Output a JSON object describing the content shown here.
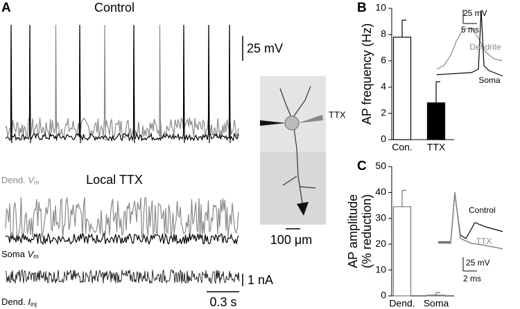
{
  "panel_a": {
    "label": "A",
    "control": "Control",
    "local_ttx": "Local TTX",
    "dend_v": {
      "prefix": "Dend.",
      "var": "V",
      "sub": "m"
    },
    "soma_v": {
      "prefix": "Soma",
      "var": "V",
      "sub": "m"
    },
    "dend_i": {
      "prefix": "Dend.",
      "var": "I",
      "sub": "inj"
    },
    "scale_mv": "25 mV",
    "scale_na": "1 nA",
    "scale_s": "0.3 s",
    "ttx": "TTX",
    "scale_um": "100 μm"
  },
  "chart_data": [
    {
      "type": "bar",
      "label": "B",
      "ylabel": [
        "AP frequency (Hz)"
      ],
      "categories": [
        "Con.",
        "TTX"
      ],
      "values": [
        7.8,
        2.8
      ],
      "errors": [
        1.3,
        1.6
      ],
      "colors": [
        "#ffffff",
        "#000000"
      ],
      "edge": "#000000",
      "ylim": [
        0,
        10
      ],
      "yticks": [
        0,
        2,
        4,
        6,
        8,
        10
      ],
      "annotations": [
        "25 mV",
        "5 ms",
        "Dendrite",
        "Soma"
      ]
    },
    {
      "type": "bar",
      "label": "C",
      "ylabel": [
        "AP amplitude",
        "(% reduction)"
      ],
      "categories": [
        "Dend.",
        "Soma"
      ],
      "values": [
        34.5,
        0.3
      ],
      "errors": [
        6.3,
        1.0
      ],
      "colors": [
        "#ffffff",
        "#ffffff"
      ],
      "edge": "#777777",
      "ylim": [
        0,
        50
      ],
      "yticks": [
        0,
        10,
        20,
        30,
        40,
        50
      ],
      "annotations": [
        "Control",
        "TTX",
        "25 mV",
        "2 ms"
      ]
    }
  ]
}
